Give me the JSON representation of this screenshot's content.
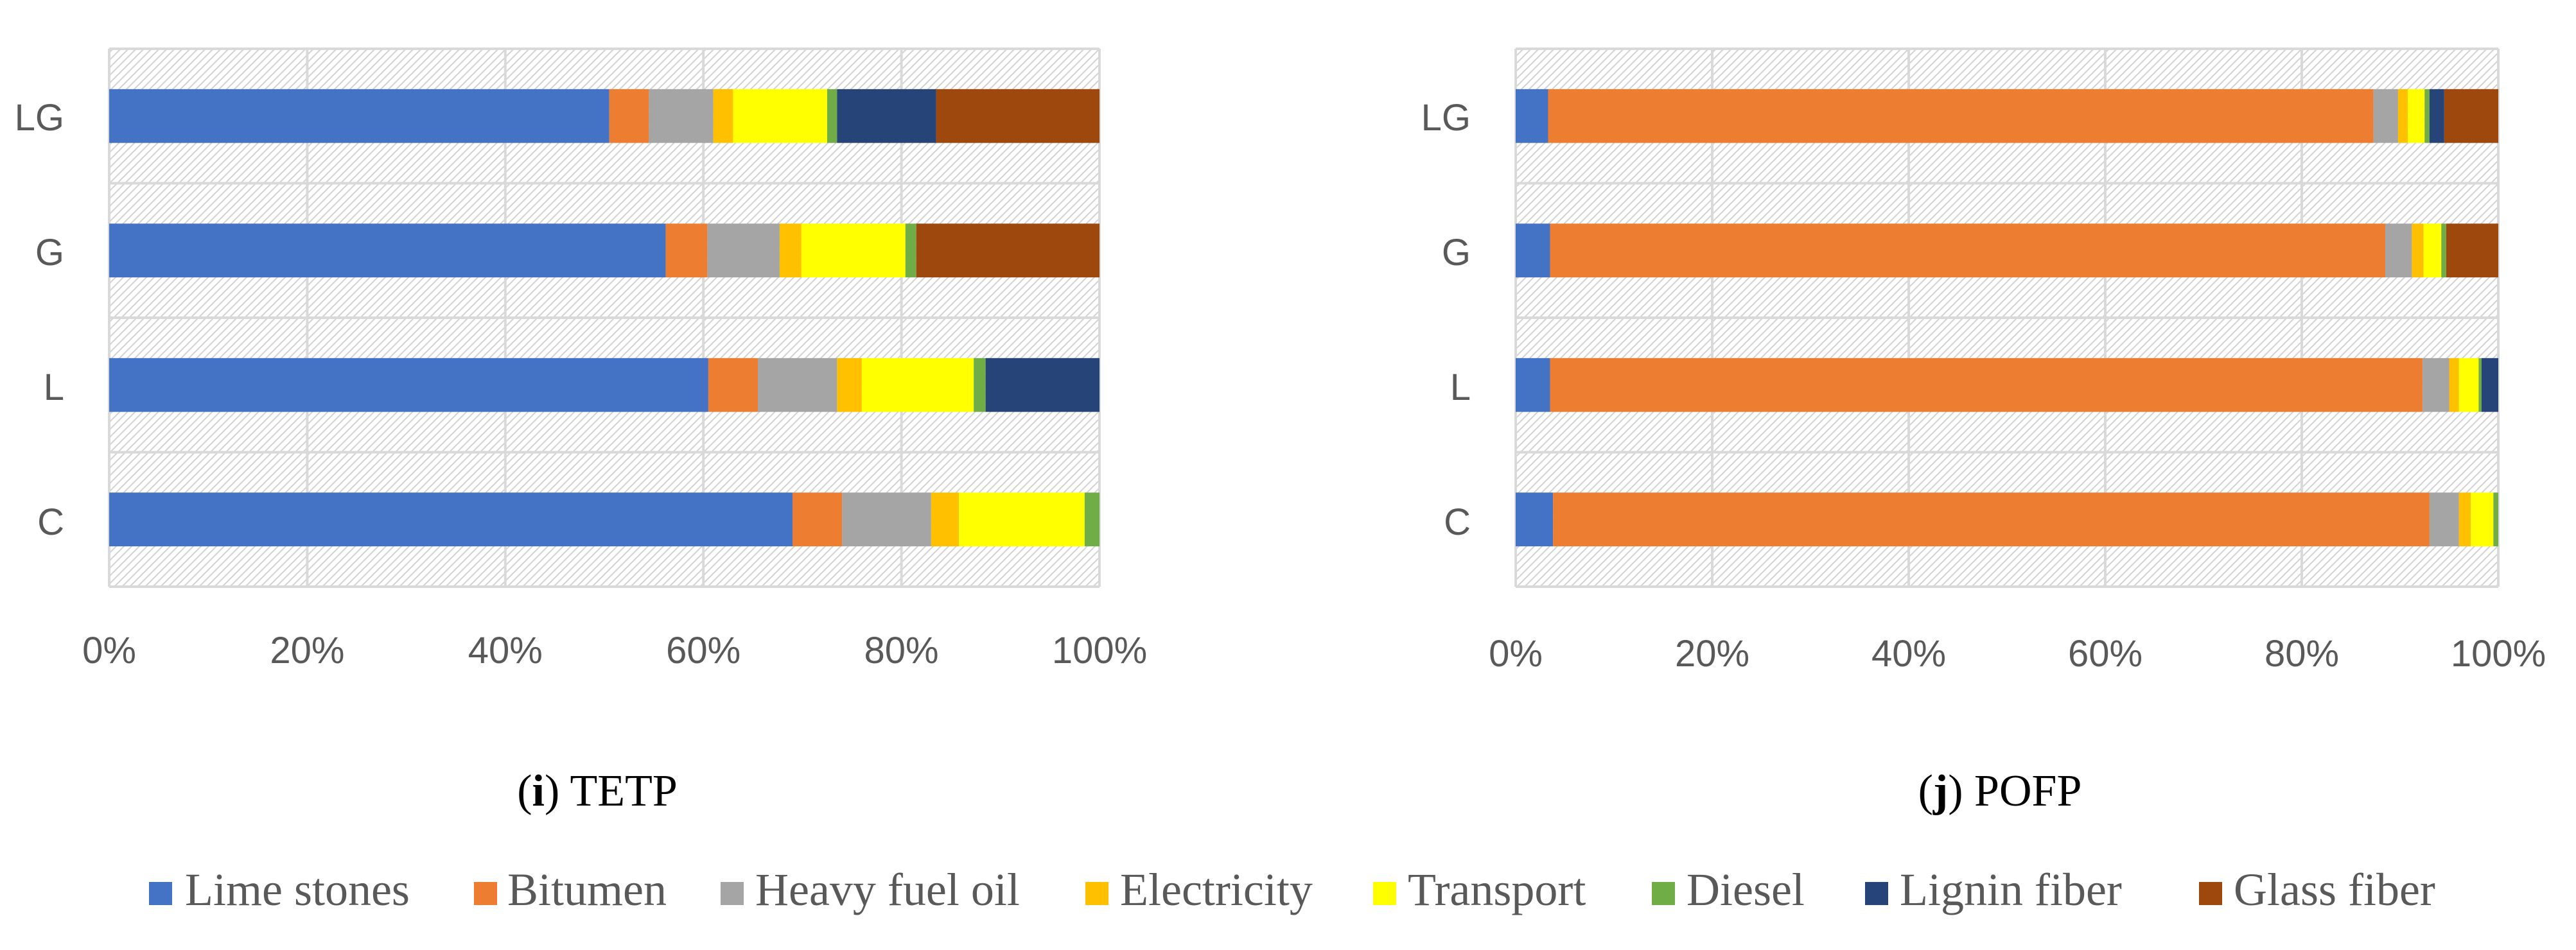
{
  "legend": [
    {
      "name": "Lime stones",
      "color": "#4472C4"
    },
    {
      "name": "Bitumen",
      "color": "#ED7D31"
    },
    {
      "name": "Heavy fuel oil",
      "color": "#A5A5A5"
    },
    {
      "name": "Electricity",
      "color": "#FFC000"
    },
    {
      "name": "Transport",
      "color": "#FFFF00"
    },
    {
      "name": "Diesel",
      "color": "#70AD47"
    },
    {
      "name": "Lignin fiber",
      "color": "#264478"
    },
    {
      "name": "Glass fiber",
      "color": "#9E480E"
    }
  ],
  "chart_data": [
    {
      "type": "bar",
      "orientation": "horizontal",
      "stacked": "100%",
      "caption_letter": "i",
      "caption_text": "TETP",
      "categories": [
        "LG",
        "G",
        "L",
        "C"
      ],
      "x_ticks": [
        "0%",
        "20%",
        "40%",
        "60%",
        "80%",
        "100%"
      ],
      "xlim": [
        0,
        100
      ],
      "series": [
        {
          "name": "Lime stones",
          "values": [
            50.5,
            56.2,
            60.5,
            69.0
          ]
        },
        {
          "name": "Bitumen",
          "values": [
            4.0,
            4.2,
            5.0,
            5.0
          ]
        },
        {
          "name": "Heavy fuel oil",
          "values": [
            6.5,
            7.3,
            8.0,
            9.0
          ]
        },
        {
          "name": "Electricity",
          "values": [
            2.0,
            2.2,
            2.5,
            2.8
          ]
        },
        {
          "name": "Transport",
          "values": [
            9.5,
            10.5,
            11.3,
            12.7
          ]
        },
        {
          "name": "Diesel",
          "values": [
            1.0,
            1.1,
            1.2,
            1.5
          ]
        },
        {
          "name": "Lignin fiber",
          "values": [
            10.0,
            0,
            11.5,
            0
          ]
        },
        {
          "name": "Glass fiber",
          "values": [
            16.5,
            18.5,
            0,
            0
          ]
        }
      ]
    },
    {
      "type": "bar",
      "orientation": "horizontal",
      "stacked": "100%",
      "caption_letter": "j",
      "caption_text": "POFP",
      "categories": [
        "LG",
        "G",
        "L",
        "C"
      ],
      "x_ticks": [
        "0%",
        "20%",
        "40%",
        "60%",
        "80%",
        "100%"
      ],
      "xlim": [
        0,
        100
      ],
      "series": [
        {
          "name": "Lime stones",
          "values": [
            3.3,
            3.5,
            3.5,
            3.8
          ]
        },
        {
          "name": "Bitumen",
          "values": [
            84.0,
            85.0,
            88.8,
            89.2
          ]
        },
        {
          "name": "Heavy fuel oil",
          "values": [
            2.5,
            2.7,
            2.7,
            3.0
          ]
        },
        {
          "name": "Electricity",
          "values": [
            1.0,
            1.2,
            1.0,
            1.2
          ]
        },
        {
          "name": "Transport",
          "values": [
            1.7,
            1.8,
            2.0,
            2.3
          ]
        },
        {
          "name": "Diesel",
          "values": [
            0.5,
            0.5,
            0.3,
            0.5
          ]
        },
        {
          "name": "Lignin fiber",
          "values": [
            1.5,
            0,
            1.7,
            0
          ]
        },
        {
          "name": "Glass fiber",
          "values": [
            5.5,
            5.3,
            0,
            0
          ]
        }
      ]
    }
  ]
}
